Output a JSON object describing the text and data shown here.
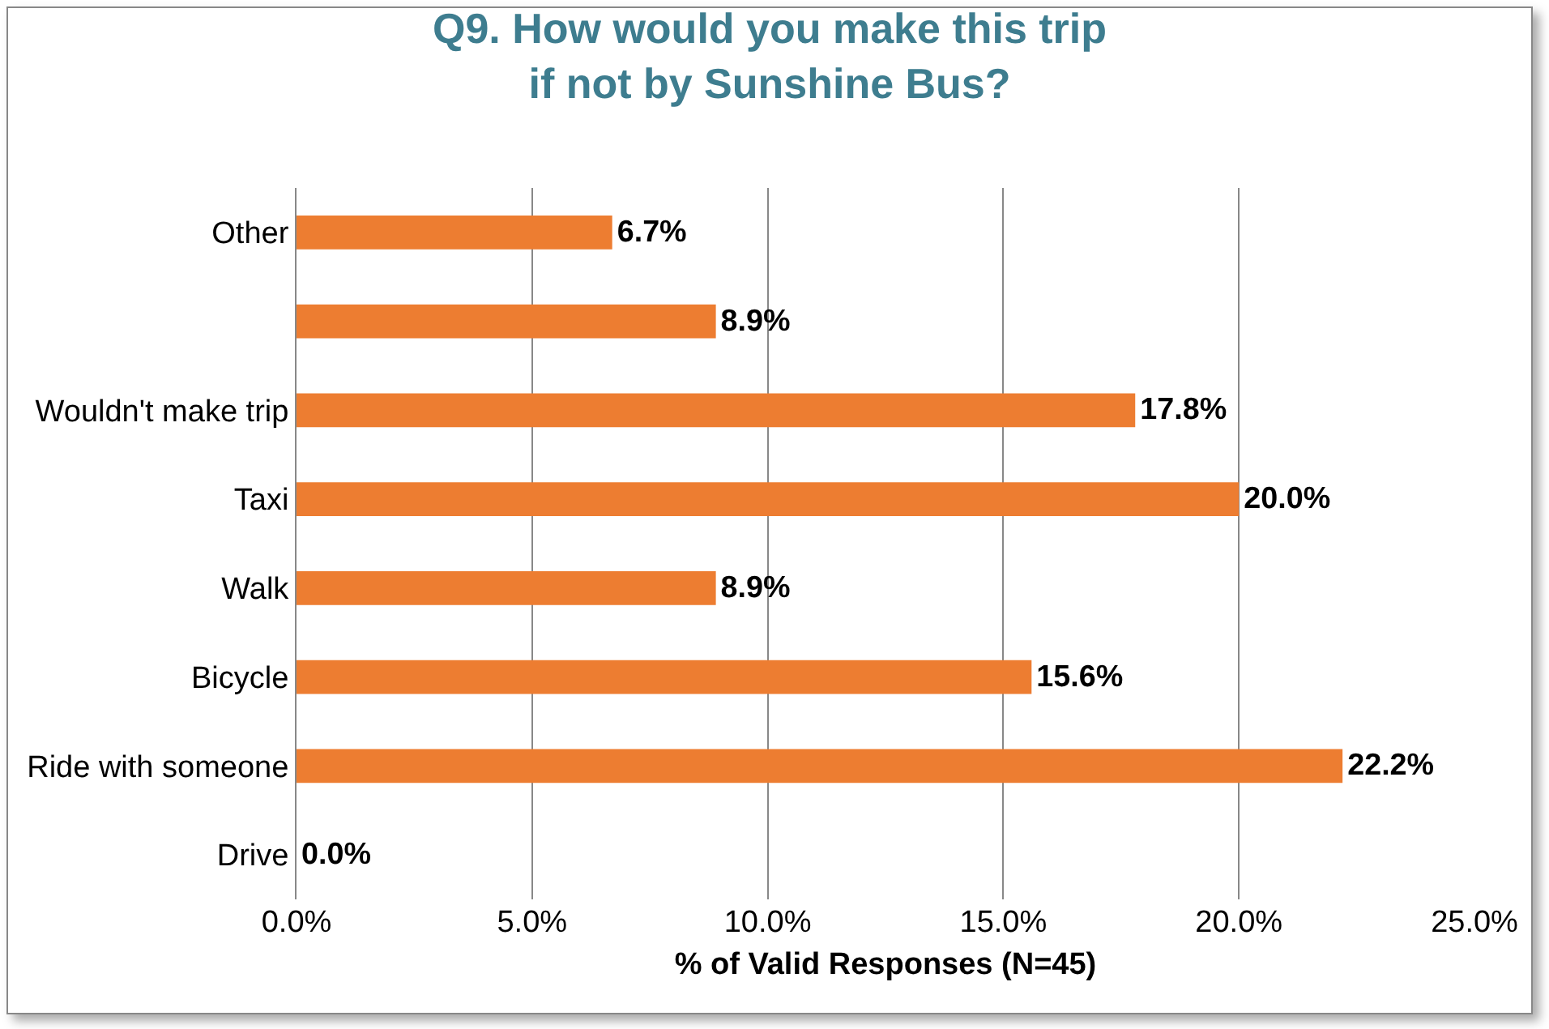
{
  "chart_data": {
    "type": "bar",
    "orientation": "horizontal",
    "title": "Q9. How would you make this trip\nif not by Sunshine Bus?",
    "xlabel": "% of Valid Responses (N=45)",
    "categories": [
      "Other",
      null,
      "Wouldn't make trip",
      "Taxi",
      "Walk",
      "Bicycle",
      "Ride with someone",
      "Drive"
    ],
    "values": [
      6.7,
      8.9,
      17.8,
      20.0,
      8.9,
      15.6,
      22.2,
      0.0
    ],
    "value_labels": [
      "6.7%",
      "8.9%",
      "17.8%",
      "20.0%",
      "8.9%",
      "15.6%",
      "22.2%",
      "0.0%"
    ],
    "color": "#ed7d31",
    "xlim": [
      0,
      25
    ],
    "xticks": [
      {
        "value": 0,
        "label": "0.0%"
      },
      {
        "value": 5,
        "label": "5.0%"
      },
      {
        "value": 10,
        "label": "10.0%"
      },
      {
        "value": 15,
        "label": "15.0%"
      },
      {
        "value": 20,
        "label": "20.0%"
      },
      {
        "value": 25,
        "label": "25.0%"
      }
    ],
    "grid": "x",
    "legend": false
  }
}
